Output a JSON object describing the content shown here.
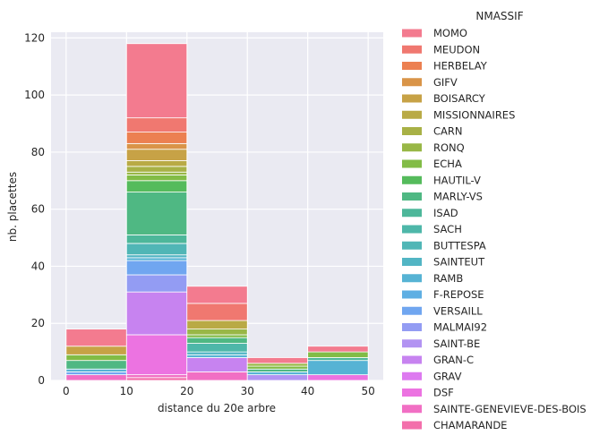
{
  "chart_data": {
    "type": "bar",
    "stacked": true,
    "xlabel": "distance du 20e arbre",
    "ylabel": "nb. placettes",
    "xlim": [
      -2.5,
      52.5
    ],
    "ylim": [
      0,
      122
    ],
    "x_ticks": [
      0,
      10,
      20,
      30,
      40,
      50
    ],
    "y_ticks": [
      0,
      20,
      40,
      60,
      80,
      100,
      120
    ],
    "grid": true,
    "bins": [
      [
        0,
        10
      ],
      [
        10,
        20
      ],
      [
        20,
        30
      ],
      [
        30,
        40
      ],
      [
        40,
        50
      ]
    ],
    "legend": {
      "title": "NMASSIF",
      "placement": "outside-right",
      "entries": [
        "MOMO",
        "MEUDON",
        "HERBELAY",
        "GIFV",
        "BOISARCY",
        "MISSIONNAIRES",
        "CARN",
        "RONQ",
        "ECHA",
        "HAUTIL-V",
        "MARLY-VS",
        "ISAD",
        "SACH",
        "BUTTESPA",
        "SAINTEUT",
        "RAMB",
        "F-REPOSE",
        "VERSAILL",
        "MALMAI92",
        "SAINT-BE",
        "GRAN-C",
        "GRAV",
        "DSF",
        "SAINTE-GENEVIEVE-DES-BOIS",
        "CHAMARANDE"
      ]
    },
    "colors": [
      "#f37b8f",
      "#f07870",
      "#ec8051",
      "#d99448",
      "#c7a246",
      "#b9aa45",
      "#a8b146",
      "#98b746",
      "#82bc46",
      "#55bb5c",
      "#4fb883",
      "#4db79a",
      "#4eb7a9",
      "#50b6b6",
      "#52b5c4",
      "#56b3d4",
      "#5fafe3",
      "#70a6f0",
      "#939cf3",
      "#b293f2",
      "#c783f0",
      "#dd7af0",
      "#ec73e1",
      "#f16fc4",
      "#f36fab"
    ],
    "series": [
      {
        "name": "MOMO",
        "values": [
          6,
          26,
          6,
          2,
          2
        ]
      },
      {
        "name": "MEUDON",
        "values": [
          0,
          5,
          6,
          0,
          0
        ]
      },
      {
        "name": "HERBELAY",
        "values": [
          0,
          4,
          0,
          0,
          0
        ]
      },
      {
        "name": "GIFV",
        "values": [
          0,
          2,
          0,
          0,
          0
        ]
      },
      {
        "name": "BOISARCY",
        "values": [
          3,
          4,
          0,
          0,
          0
        ]
      },
      {
        "name": "MISSIONNAIRES",
        "values": [
          0,
          2,
          3,
          0,
          0
        ]
      },
      {
        "name": "CARN",
        "values": [
          0,
          2,
          0,
          0,
          0
        ]
      },
      {
        "name": "RONQ",
        "values": [
          0,
          1,
          2,
          1,
          0
        ]
      },
      {
        "name": "ECHA",
        "values": [
          2,
          2,
          1,
          1,
          2
        ]
      },
      {
        "name": "HAUTIL-V",
        "values": [
          0,
          4,
          0,
          0,
          0
        ]
      },
      {
        "name": "MARLY-VS",
        "values": [
          3,
          15,
          2,
          1,
          0
        ]
      },
      {
        "name": "ISAD",
        "values": [
          0,
          3,
          0,
          0,
          1
        ]
      },
      {
        "name": "SACH",
        "values": [
          0,
          0,
          3,
          0,
          0
        ]
      },
      {
        "name": "BUTTESPA",
        "values": [
          0,
          4,
          0,
          0,
          0
        ]
      },
      {
        "name": "SAINTEUT",
        "values": [
          0,
          1,
          1,
          0,
          0
        ]
      },
      {
        "name": "RAMB",
        "values": [
          1,
          1,
          1,
          1,
          5
        ]
      },
      {
        "name": "F-REPOSE",
        "values": [
          0,
          0,
          0,
          0,
          0
        ]
      },
      {
        "name": "VERSAILL",
        "values": [
          1,
          5,
          0,
          0,
          0
        ]
      },
      {
        "name": "MALMAI92",
        "values": [
          0,
          6,
          0,
          0,
          0
        ]
      },
      {
        "name": "SAINT-BE",
        "values": [
          0,
          0,
          0,
          2,
          0
        ]
      },
      {
        "name": "GRAN-C",
        "values": [
          0,
          15,
          5,
          0,
          0
        ]
      },
      {
        "name": "GRAV",
        "values": [
          0,
          0,
          0,
          0,
          0
        ]
      },
      {
        "name": "DSF",
        "values": [
          0,
          14,
          0,
          0,
          2
        ]
      },
      {
        "name": "SAINTE-GENEVIEVE-DES-BOIS",
        "values": [
          2,
          1,
          3,
          0,
          0
        ]
      },
      {
        "name": "CHAMARANDE",
        "values": [
          0,
          1,
          0,
          0,
          0
        ]
      }
    ]
  }
}
